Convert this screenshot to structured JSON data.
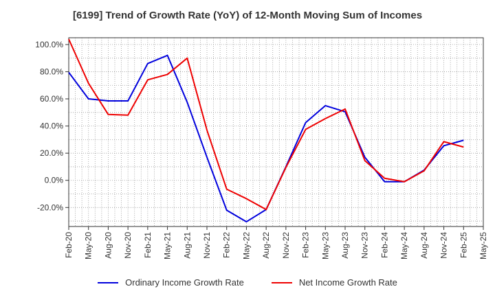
{
  "chart_data": {
    "type": "line",
    "title": "[6199]  Trend of Growth Rate (YoY) of 12-Month Moving Sum of Incomes",
    "xlabel": "",
    "ylabel": "",
    "ylim": [
      -34,
      105
    ],
    "yticks": [
      -20,
      0,
      20,
      40,
      60,
      80,
      100
    ],
    "ytick_labels": [
      "-20.0%",
      "0.0%",
      "20.0%",
      "40.0%",
      "60.0%",
      "80.0%",
      "100.0%"
    ],
    "x_tick_labels": [
      "Feb-20",
      "May-20",
      "Aug-20",
      "Nov-20",
      "Feb-21",
      "May-21",
      "Aug-21",
      "Nov-21",
      "Feb-22",
      "May-22",
      "Aug-22",
      "Nov-22",
      "Feb-23",
      "May-23",
      "Aug-23",
      "Nov-23",
      "Feb-24",
      "May-24",
      "Aug-24",
      "Nov-24",
      "Feb-25",
      "May-25"
    ],
    "grid": true,
    "legend_position": "bottom",
    "series": [
      {
        "name": "Ordinary Income Growth Rate",
        "color": "#0000dd",
        "values": [
          79.5,
          60.0,
          58.5,
          58.5,
          86.0,
          92.0,
          57.5,
          17.0,
          -22.0,
          -30.5,
          -21.5,
          10.0,
          42.5,
          55.0,
          50.5,
          17.0,
          -1.0,
          -1.0,
          7.5,
          25.5,
          29.5
        ]
      },
      {
        "name": "Net Income Growth Rate",
        "color": "#ee0000",
        "values": [
          104.0,
          71.5,
          48.5,
          48.0,
          74.0,
          78.0,
          90.0,
          37.0,
          -6.5,
          -13.5,
          -21.5,
          9.5,
          37.5,
          45.5,
          52.5,
          14.5,
          1.5,
          -1.0,
          7.0,
          28.5,
          24.5
        ]
      }
    ]
  }
}
